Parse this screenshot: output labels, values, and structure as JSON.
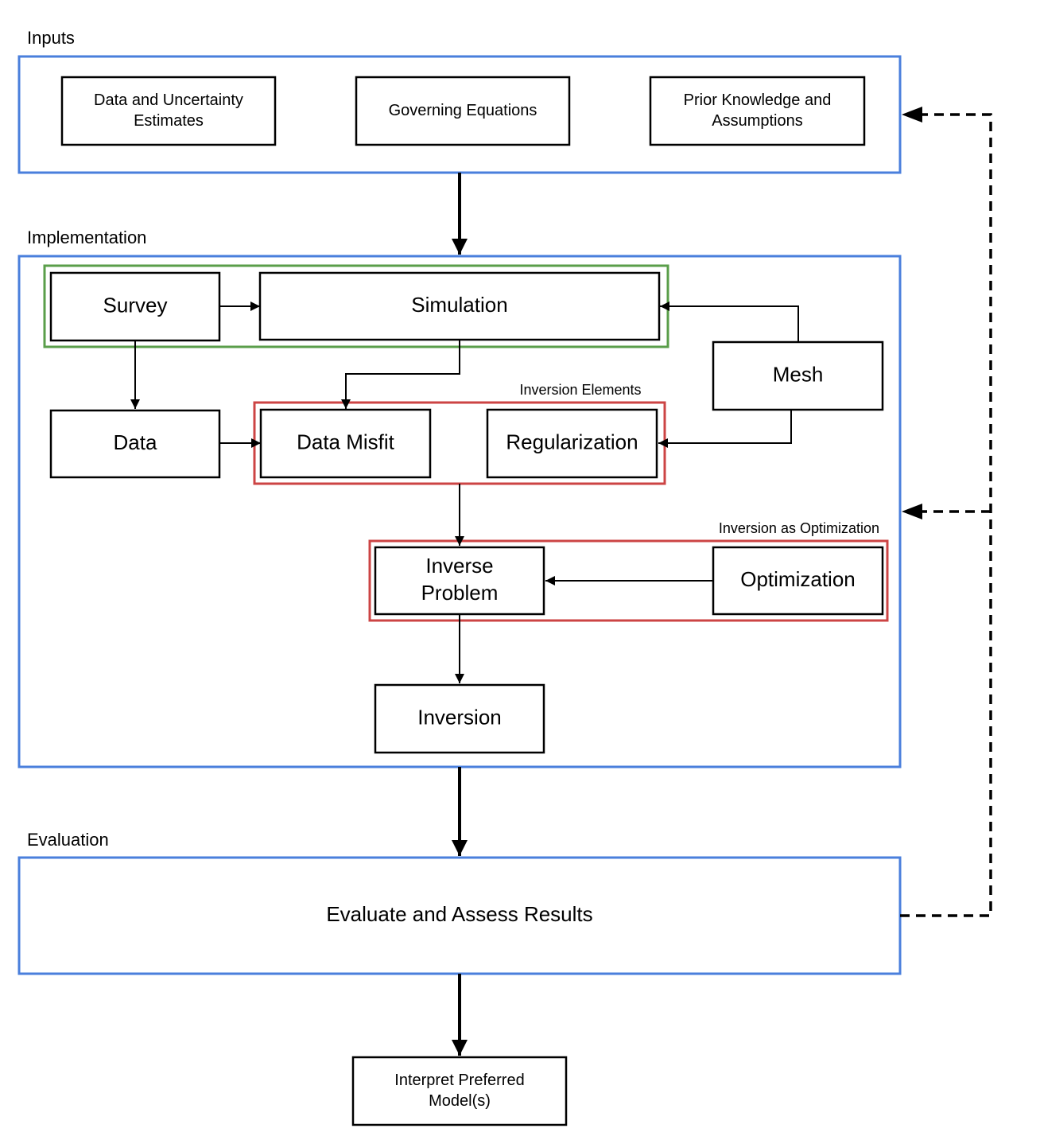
{
  "sections": [
    {
      "label": "Inputs"
    },
    {
      "label": "Implementation"
    },
    {
      "label": "Evaluation"
    }
  ],
  "nodes": [
    {
      "lines": [
        "Data and Uncertainty",
        "Estimates"
      ]
    },
    {
      "lines": [
        "Governing Equations"
      ]
    },
    {
      "lines": [
        "Prior Knowledge and",
        "Assumptions"
      ]
    },
    {
      "lines": [
        "Survey"
      ]
    },
    {
      "lines": [
        "Simulation"
      ]
    },
    {
      "lines": [
        "Mesh"
      ]
    },
    {
      "lines": [
        "Data"
      ]
    },
    {
      "lines": [
        "Data Misfit"
      ]
    },
    {
      "lines": [
        "Regularization"
      ]
    },
    {
      "lines": [
        "Inverse",
        "Problem"
      ]
    },
    {
      "lines": [
        "Optimization"
      ]
    },
    {
      "lines": [
        "Inversion"
      ]
    },
    {
      "lines": [
        "Evaluate and Assess Results"
      ]
    },
    {
      "lines": [
        "Interpret Preferred",
        "Model(s)"
      ]
    }
  ],
  "groups": [
    {
      "label": "Inversion Elements"
    },
    {
      "label": "Inversion as Optimization"
    }
  ]
}
